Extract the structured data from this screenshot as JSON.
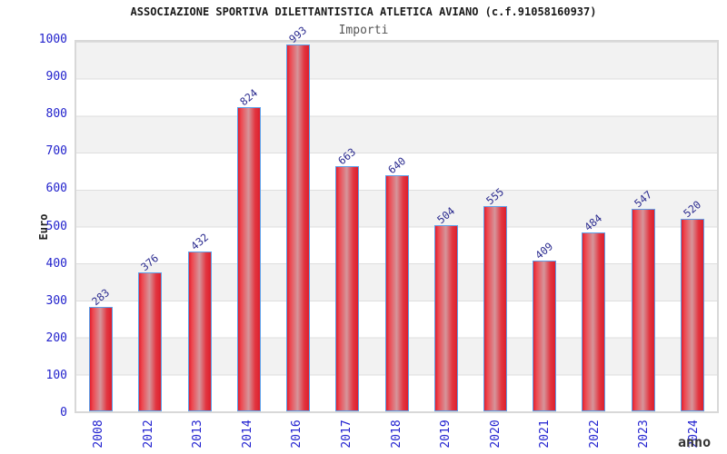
{
  "header": {
    "title": "ASSOCIAZIONE SPORTIVA DILETTANTISTICA ATLETICA AVIANO (c.f.91058160937)",
    "subtitle": "Importi"
  },
  "axes": {
    "y_title": "Euro",
    "x_title": "anno"
  },
  "chart_data": {
    "type": "bar",
    "title": "ASSOCIAZIONE SPORTIVA DILETTANTISTICA ATLETICA AVIANO (c.f.91058160937)",
    "subtitle": "Importi",
    "xlabel": "anno",
    "ylabel": "Euro",
    "categories": [
      "2008",
      "2012",
      "2013",
      "2014",
      "2016",
      "2017",
      "2018",
      "2019",
      "2020",
      "2021",
      "2022",
      "2023",
      "2024"
    ],
    "values": [
      283,
      376,
      432,
      824,
      993,
      663,
      640,
      504,
      555,
      409,
      484,
      547,
      520
    ],
    "ylim": [
      0,
      1000
    ],
    "yticks": [
      0,
      100,
      200,
      300,
      400,
      500,
      600,
      700,
      800,
      900,
      1000
    ],
    "grid": "alternating horizontal bands, gray on top band, gridline every 100",
    "legend_position": "none",
    "value_labels_shown": true,
    "value_label_rotation_deg": -40,
    "xtick_rotation_deg": -90,
    "colors": {
      "bar_fill_edge": "#e11f2d",
      "bar_fill_mid": "#d5959b",
      "bar_border": "#5e9fe8",
      "ytick_label": "#2222cc",
      "xtick_label": "#2222d0",
      "value_label": "#2b2b8f",
      "band_gray": "#f2f2f2",
      "plot_border": "#d8d8d8",
      "title": "#1a1a1a",
      "subtitle": "#555555"
    }
  }
}
